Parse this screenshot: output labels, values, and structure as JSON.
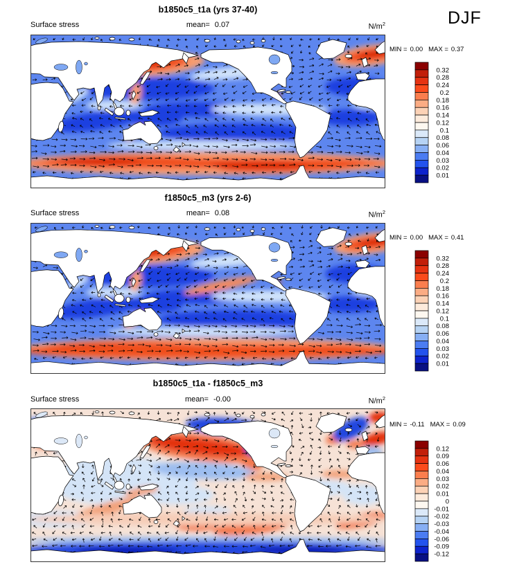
{
  "season": "DJF",
  "panels": [
    {
      "title": "b1850c5_t1a (yrs 37-40)",
      "field_label": "Surface stress",
      "mean_label": "mean=",
      "mean_value": "0.07",
      "units_base": "N/m",
      "units_exponent": "2",
      "min_label": "MIN =",
      "min_value": "0.00",
      "max_label": "MAX =",
      "max_value": "0.37",
      "colorbar_tick_labels": [
        "0.32",
        "0.28",
        "0.24",
        "0.2",
        "0.18",
        "0.16",
        "0.14",
        "0.12",
        "0.1",
        "0.08",
        "0.06",
        "0.04",
        "0.03",
        "0.02",
        "0.01"
      ],
      "colorbar_colors": [
        "#8B0000",
        "#C21F0A",
        "#E63312",
        "#FB4B1C",
        "#FB7E4E",
        "#FBAC84",
        "#FCD2B6",
        "#FDEBDC",
        "#FEF8F0",
        "#DBE9F9",
        "#B6D3F4",
        "#87AFF4",
        "#4B7CF2",
        "#2353EE",
        "#0D23CD",
        "#081083"
      ],
      "map_kind": "stress"
    },
    {
      "title": "f1850c5_m3 (yrs 2-6)",
      "field_label": "Surface stress",
      "mean_label": "mean=",
      "mean_value": "0.08",
      "units_base": "N/m",
      "units_exponent": "2",
      "min_label": "MIN =",
      "min_value": "0.00",
      "max_label": "MAX =",
      "max_value": "0.41",
      "colorbar_tick_labels": [
        "0.32",
        "0.28",
        "0.24",
        "0.2",
        "0.18",
        "0.16",
        "0.14",
        "0.12",
        "0.1",
        "0.08",
        "0.06",
        "0.04",
        "0.03",
        "0.02",
        "0.01"
      ],
      "colorbar_colors": [
        "#8B0000",
        "#C21F0A",
        "#E63312",
        "#FB4B1C",
        "#FB7E4E",
        "#FBAC84",
        "#FCD2B6",
        "#FDEBDC",
        "#FEF8F0",
        "#DBE9F9",
        "#B6D3F4",
        "#87AFF4",
        "#4B7CF2",
        "#2353EE",
        "#0D23CD",
        "#081083"
      ],
      "map_kind": "stress2"
    },
    {
      "title": "b1850c5_t1a - f1850c5_m3",
      "field_label": "Surface stress",
      "mean_label": "mean=",
      "mean_value": "-0.00",
      "units_base": "N/m",
      "units_exponent": "2",
      "min_label": "MIN =",
      "min_value": "-0.11",
      "max_label": "MAX =",
      "max_value": "0.09",
      "colorbar_tick_labels": [
        "0.12",
        "0.09",
        "0.06",
        "0.04",
        "0.03",
        "0.02",
        "0.01",
        "0",
        "-0.01",
        "-0.02",
        "-0.03",
        "-0.04",
        "-0.06",
        "-0.09",
        "-0.12"
      ],
      "colorbar_colors": [
        "#8B0000",
        "#C21F0A",
        "#E63312",
        "#FB4B1C",
        "#FB7E4E",
        "#FBAC84",
        "#FCD2B6",
        "#FDEBDC",
        "#FEF8F0",
        "#DBE9F9",
        "#B6D3F4",
        "#87AFF4",
        "#4B7CF2",
        "#2353EE",
        "#0D23CD",
        "#081083"
      ],
      "map_kind": "diff"
    }
  ],
  "chart_data": [
    {
      "type": "heatmap",
      "subtype": "global map, filled contours with vector arrow overlay",
      "title": "b1850c5_t1a (yrs 37-40)",
      "variable": "Surface stress",
      "season": "DJF",
      "units": "N/m^2",
      "mean": 0.07,
      "min": 0.0,
      "max": 0.37,
      "contour_levels": [
        0.01,
        0.02,
        0.03,
        0.04,
        0.06,
        0.08,
        0.1,
        0.12,
        0.14,
        0.16,
        0.18,
        0.2,
        0.24,
        0.28,
        0.32
      ],
      "palette_top_to_bottom": [
        "#8B0000",
        "#C21F0A",
        "#E63312",
        "#FB4B1C",
        "#FB7E4E",
        "#FBAC84",
        "#FCD2B6",
        "#FDEBDC",
        "#FEF8F0",
        "#DBE9F9",
        "#B6D3F4",
        "#87AFF4",
        "#4B7CF2",
        "#2353EE",
        "#0D23CD",
        "#081083"
      ],
      "notes": "High stress (orange/red) bands over Southern Ocean, North Pacific and North Atlantic storm tracks; low stress (blue) over tropics and subtropics; arrows show stress direction (westerlies eastward, trades westward)."
    },
    {
      "type": "heatmap",
      "subtype": "global map, filled contours with vector arrow overlay",
      "title": "f1850c5_m3 (yrs 2-6)",
      "variable": "Surface stress",
      "season": "DJF",
      "units": "N/m^2",
      "mean": 0.08,
      "min": 0.0,
      "max": 0.41,
      "contour_levels": [
        0.01,
        0.02,
        0.03,
        0.04,
        0.06,
        0.08,
        0.1,
        0.12,
        0.14,
        0.16,
        0.18,
        0.2,
        0.24,
        0.28,
        0.32
      ],
      "palette_top_to_bottom": [
        "#8B0000",
        "#C21F0A",
        "#E63312",
        "#FB4B1C",
        "#FB7E4E",
        "#FBAC84",
        "#FCD2B6",
        "#FDEBDC",
        "#FEF8F0",
        "#DBE9F9",
        "#B6D3F4",
        "#87AFF4",
        "#4B7CF2",
        "#2353EE",
        "#0D23CD",
        "#081083"
      ],
      "notes": "Same field as top panel for second model run; Southern Ocean westerly band slightly stronger (max 0.41)."
    },
    {
      "type": "heatmap",
      "subtype": "global map difference, filled contours with vector arrow overlay",
      "title": "b1850c5_t1a - f1850c5_m3",
      "variable": "Surface stress difference",
      "season": "DJF",
      "units": "N/m^2",
      "mean": -0.0,
      "min": -0.11,
      "max": 0.09,
      "contour_levels": [
        -0.12,
        -0.09,
        -0.06,
        -0.04,
        -0.03,
        -0.02,
        -0.01,
        0,
        0.01,
        0.02,
        0.03,
        0.04,
        0.06,
        0.09,
        0.12
      ],
      "palette_top_to_bottom": [
        "#8B0000",
        "#C21F0A",
        "#E63312",
        "#FB4B1C",
        "#FB7E4E",
        "#FBAC84",
        "#FCD2B6",
        "#FDEBDC",
        "#FEF8F0",
        "#DBE9F9",
        "#B6D3F4",
        "#87AFF4",
        "#4B7CF2",
        "#2353EE",
        "#0D23CD",
        "#081083"
      ],
      "notes": "Mostly near-zero (pale); strong positive (red) arc in North Pacific storm track flanked by negative (blue); mixed dipole in North Atlantic; negative band along Southern Ocean."
    }
  ]
}
